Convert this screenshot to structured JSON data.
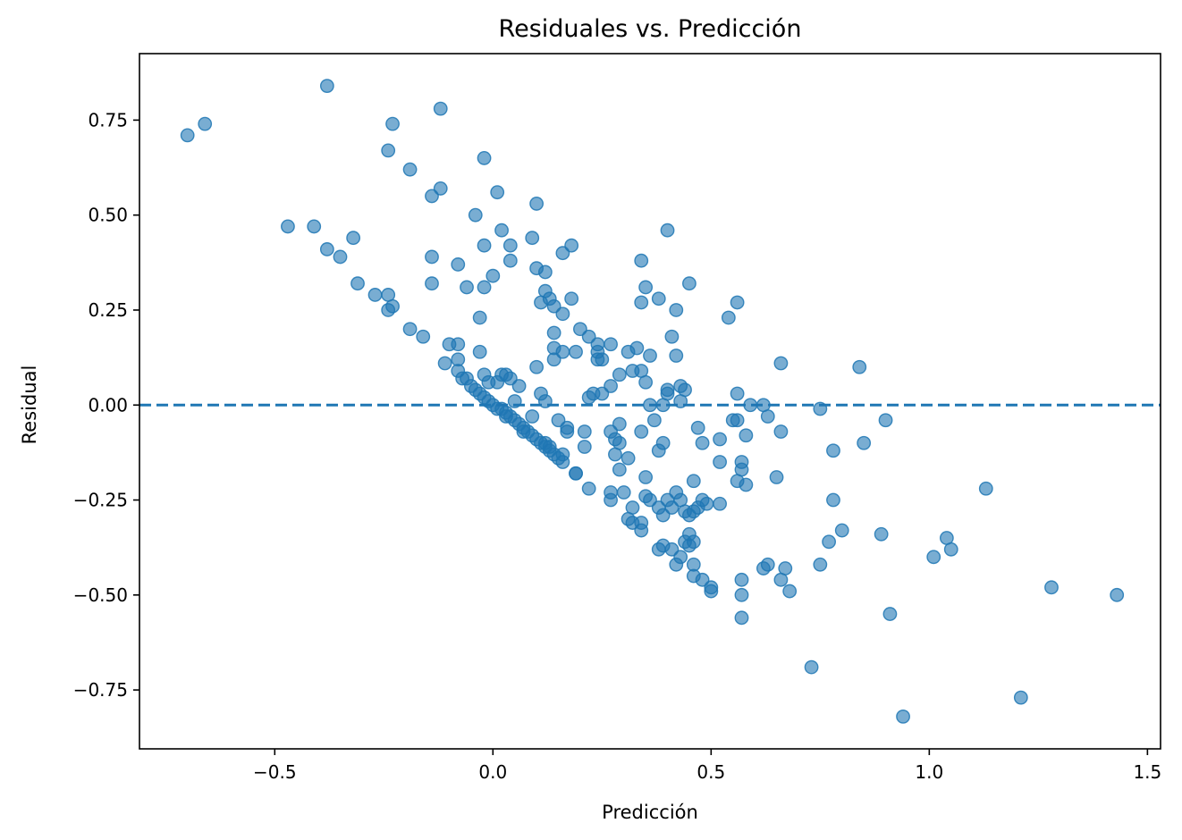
{
  "chart_data": {
    "type": "scatter",
    "title": "Residuales vs. Predicción",
    "xlabel": "Predicción",
    "ylabel": "Residual",
    "xlim": [
      -0.81,
      1.53
    ],
    "ylim": [
      -0.905,
      0.925
    ],
    "xticks": [
      -0.5,
      0.0,
      0.5,
      1.0,
      1.5
    ],
    "xtick_labels": [
      "−0.5",
      "0.0",
      "0.5",
      "1.0",
      "1.5"
    ],
    "yticks": [
      -0.75,
      -0.5,
      -0.25,
      0.0,
      0.25,
      0.5,
      0.75
    ],
    "ytick_labels": [
      "−0.75",
      "−0.50",
      "−0.25",
      "0.00",
      "0.25",
      "0.50",
      "0.75"
    ],
    "grid": false,
    "reference_line": {
      "y": 0,
      "style": "dashed",
      "color": "#1f77b4"
    },
    "color": "#1f77b4",
    "points": [
      [
        -0.7,
        0.71
      ],
      [
        -0.66,
        0.74
      ],
      [
        -0.38,
        0.84
      ],
      [
        -0.12,
        0.78
      ],
      [
        -0.23,
        0.74
      ],
      [
        -0.24,
        0.67
      ],
      [
        -0.19,
        0.62
      ],
      [
        -0.02,
        0.65
      ],
      [
        -0.12,
        0.57
      ],
      [
        -0.14,
        0.55
      ],
      [
        0.01,
        0.56
      ],
      [
        0.1,
        0.53
      ],
      [
        -0.04,
        0.5
      ],
      [
        -0.47,
        0.47
      ],
      [
        -0.41,
        0.47
      ],
      [
        -0.38,
        0.41
      ],
      [
        -0.32,
        0.44
      ],
      [
        -0.35,
        0.39
      ],
      [
        -0.31,
        0.32
      ],
      [
        -0.27,
        0.29
      ],
      [
        -0.24,
        0.29
      ],
      [
        -0.24,
        0.25
      ],
      [
        -0.23,
        0.26
      ],
      [
        -0.14,
        0.39
      ],
      [
        -0.14,
        0.32
      ],
      [
        -0.08,
        0.37
      ],
      [
        -0.06,
        0.31
      ],
      [
        -0.02,
        0.42
      ],
      [
        -0.02,
        0.31
      ],
      [
        0.0,
        0.34
      ],
      [
        0.02,
        0.46
      ],
      [
        0.04,
        0.42
      ],
      [
        0.04,
        0.38
      ],
      [
        0.09,
        0.44
      ],
      [
        0.1,
        0.36
      ],
      [
        0.12,
        0.35
      ],
      [
        0.16,
        0.4
      ],
      [
        0.18,
        0.42
      ],
      [
        0.4,
        0.46
      ],
      [
        0.34,
        0.38
      ],
      [
        -0.19,
        0.2
      ],
      [
        -0.16,
        0.18
      ],
      [
        -0.1,
        0.16
      ],
      [
        -0.08,
        0.16
      ],
      [
        -0.11,
        0.11
      ],
      [
        -0.08,
        0.12
      ],
      [
        -0.03,
        0.23
      ],
      [
        -0.03,
        0.14
      ],
      [
        0.1,
        0.1
      ],
      [
        0.11,
        0.27
      ],
      [
        0.12,
        0.3
      ],
      [
        0.13,
        0.28
      ],
      [
        0.14,
        0.26
      ],
      [
        0.16,
        0.24
      ],
      [
        0.18,
        0.28
      ],
      [
        0.14,
        0.19
      ],
      [
        0.14,
        0.15
      ],
      [
        0.16,
        0.14
      ],
      [
        0.14,
        0.12
      ],
      [
        0.19,
        0.14
      ],
      [
        0.2,
        0.2
      ],
      [
        0.22,
        0.18
      ],
      [
        0.24,
        0.16
      ],
      [
        0.24,
        0.12
      ],
      [
        0.24,
        0.14
      ],
      [
        0.27,
        0.16
      ],
      [
        0.29,
        0.08
      ],
      [
        0.31,
        0.14
      ],
      [
        0.33,
        0.15
      ],
      [
        0.34,
        0.27
      ],
      [
        0.35,
        0.31
      ],
      [
        0.36,
        0.13
      ],
      [
        0.38,
        0.28
      ],
      [
        0.41,
        0.18
      ],
      [
        0.42,
        0.25
      ],
      [
        0.45,
        0.32
      ],
      [
        0.42,
        0.13
      ],
      [
        0.54,
        0.23
      ],
      [
        0.56,
        0.27
      ],
      [
        0.66,
        0.11
      ],
      [
        0.84,
        0.1
      ],
      [
        0.27,
        0.05
      ],
      [
        0.32,
        0.09
      ],
      [
        0.34,
        0.09
      ],
      [
        0.35,
        0.06
      ],
      [
        0.36,
        0.0
      ],
      [
        0.39,
        0.0
      ],
      [
        0.4,
        0.04
      ],
      [
        0.4,
        0.03
      ],
      [
        0.43,
        0.05
      ],
      [
        0.44,
        0.04
      ],
      [
        0.43,
        0.01
      ],
      [
        0.25,
        0.03
      ],
      [
        0.22,
        0.02
      ],
      [
        0.23,
        0.03
      ],
      [
        0.11,
        0.03
      ],
      [
        0.12,
        0.01
      ],
      [
        0.06,
        0.05
      ],
      [
        0.05,
        0.01
      ],
      [
        0.04,
        0.07
      ],
      [
        0.02,
        0.08
      ],
      [
        0.03,
        0.08
      ],
      [
        0.01,
        0.06
      ],
      [
        -0.02,
        0.08
      ],
      [
        -0.08,
        0.09
      ],
      [
        -0.07,
        0.07
      ],
      [
        -0.06,
        0.07
      ],
      [
        -0.05,
        0.05
      ],
      [
        -0.04,
        0.04
      ],
      [
        -0.03,
        0.03
      ],
      [
        -0.02,
        0.02
      ],
      [
        -0.01,
        0.01
      ],
      [
        0.0,
        0.0
      ],
      [
        0.01,
        -0.01
      ],
      [
        0.02,
        -0.01
      ],
      [
        0.03,
        -0.02
      ],
      [
        0.04,
        -0.03
      ],
      [
        0.05,
        -0.04
      ],
      [
        0.06,
        -0.05
      ],
      [
        0.07,
        -0.06
      ],
      [
        0.08,
        -0.07
      ],
      [
        0.09,
        -0.08
      ],
      [
        0.1,
        -0.09
      ],
      [
        0.11,
        -0.1
      ],
      [
        0.12,
        -0.11
      ],
      [
        0.13,
        -0.12
      ],
      [
        0.14,
        -0.13
      ],
      [
        0.15,
        -0.14
      ],
      [
        0.16,
        -0.13
      ],
      [
        0.09,
        -0.03
      ],
      [
        0.12,
        -0.1
      ],
      [
        0.15,
        -0.04
      ],
      [
        0.17,
        -0.06
      ],
      [
        0.17,
        -0.07
      ],
      [
        0.16,
        -0.15
      ],
      [
        0.19,
        -0.18
      ],
      [
        0.21,
        -0.07
      ],
      [
        0.21,
        -0.11
      ],
      [
        0.22,
        -0.22
      ],
      [
        0.27,
        -0.07
      ],
      [
        0.28,
        -0.09
      ],
      [
        0.29,
        -0.1
      ],
      [
        0.29,
        -0.05
      ],
      [
        0.28,
        -0.13
      ],
      [
        0.31,
        -0.14
      ],
      [
        0.29,
        -0.17
      ],
      [
        0.34,
        -0.07
      ],
      [
        0.35,
        -0.19
      ],
      [
        0.37,
        -0.04
      ],
      [
        0.38,
        -0.12
      ],
      [
        0.39,
        -0.1
      ],
      [
        0.27,
        -0.25
      ],
      [
        0.27,
        -0.23
      ],
      [
        0.3,
        -0.23
      ],
      [
        0.32,
        -0.27
      ],
      [
        0.31,
        -0.3
      ],
      [
        0.32,
        -0.31
      ],
      [
        0.34,
        -0.31
      ],
      [
        0.34,
        -0.33
      ],
      [
        0.35,
        -0.24
      ],
      [
        0.36,
        -0.25
      ],
      [
        0.38,
        -0.27
      ],
      [
        0.39,
        -0.29
      ],
      [
        0.4,
        -0.25
      ],
      [
        0.41,
        -0.27
      ],
      [
        0.42,
        -0.23
      ],
      [
        0.43,
        -0.25
      ],
      [
        0.44,
        -0.28
      ],
      [
        0.45,
        -0.29
      ],
      [
        0.46,
        -0.28
      ],
      [
        0.47,
        -0.27
      ],
      [
        0.48,
        -0.25
      ],
      [
        0.49,
        -0.26
      ],
      [
        0.46,
        -0.2
      ],
      [
        0.47,
        -0.06
      ],
      [
        0.48,
        -0.1
      ],
      [
        0.52,
        -0.09
      ],
      [
        0.52,
        -0.26
      ],
      [
        0.52,
        -0.15
      ],
      [
        0.56,
        -0.04
      ],
      [
        0.56,
        -0.2
      ],
      [
        0.57,
        -0.15
      ],
      [
        0.57,
        -0.17
      ],
      [
        0.58,
        -0.21
      ],
      [
        0.58,
        -0.08
      ],
      [
        0.59,
        0.0
      ],
      [
        0.62,
        0.0
      ],
      [
        0.63,
        -0.03
      ],
      [
        0.65,
        -0.19
      ],
      [
        0.66,
        -0.07
      ],
      [
        0.75,
        -0.01
      ],
      [
        0.78,
        -0.12
      ],
      [
        0.78,
        -0.25
      ],
      [
        0.8,
        -0.33
      ],
      [
        0.77,
        -0.36
      ],
      [
        0.75,
        -0.42
      ],
      [
        0.85,
        -0.1
      ],
      [
        0.9,
        -0.04
      ],
      [
        0.89,
        -0.34
      ],
      [
        0.38,
        -0.38
      ],
      [
        0.39,
        -0.37
      ],
      [
        0.41,
        -0.38
      ],
      [
        0.42,
        -0.42
      ],
      [
        0.43,
        -0.4
      ],
      [
        0.44,
        -0.36
      ],
      [
        0.45,
        -0.34
      ],
      [
        0.45,
        -0.37
      ],
      [
        0.46,
        -0.36
      ],
      [
        0.46,
        -0.42
      ],
      [
        0.46,
        -0.45
      ],
      [
        0.48,
        -0.46
      ],
      [
        0.5,
        -0.48
      ],
      [
        0.5,
        -0.49
      ],
      [
        0.57,
        -0.46
      ],
      [
        0.57,
        -0.5
      ],
      [
        0.57,
        -0.56
      ],
      [
        0.62,
        -0.43
      ],
      [
        0.63,
        -0.42
      ],
      [
        0.66,
        -0.46
      ],
      [
        0.67,
        -0.43
      ],
      [
        0.68,
        -0.49
      ],
      [
        0.73,
        -0.69
      ],
      [
        0.91,
        -0.55
      ],
      [
        0.94,
        -0.82
      ],
      [
        1.01,
        -0.4
      ],
      [
        1.04,
        -0.35
      ],
      [
        1.05,
        -0.38
      ],
      [
        1.13,
        -0.22
      ],
      [
        1.21,
        -0.77
      ],
      [
        1.28,
        -0.48
      ],
      [
        1.43,
        -0.5
      ],
      [
        0.56,
        0.03
      ],
      [
        0.55,
        -0.04
      ],
      [
        -0.01,
        0.06
      ],
      [
        0.03,
        -0.03
      ],
      [
        0.07,
        -0.07
      ],
      [
        0.13,
        -0.11
      ],
      [
        0.19,
        -0.18
      ],
      [
        0.25,
        0.12
      ]
    ]
  }
}
